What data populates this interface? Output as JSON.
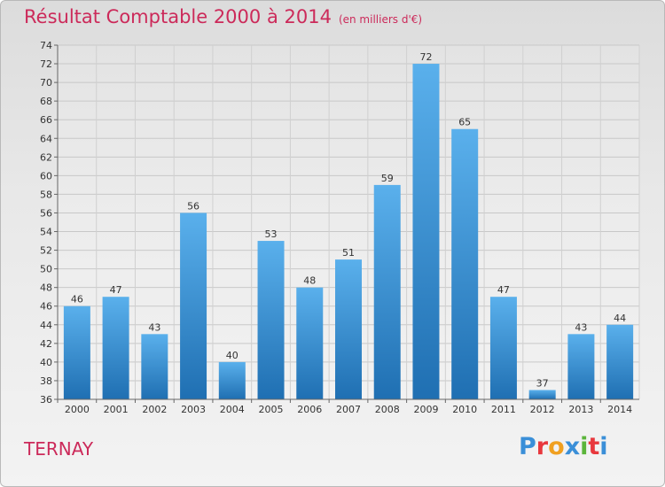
{
  "header": {
    "title": "Résultat Comptable 2000 à 2014",
    "subtitle": "(en milliers d'€)"
  },
  "commune": "TERNAY",
  "logo": {
    "letters": [
      "P",
      "r",
      "o",
      "x",
      "i",
      "t",
      "i"
    ],
    "colors": [
      "#3a8fd8",
      "#e8383d",
      "#f0a020",
      "#3a8fd8",
      "#5bb53b",
      "#e8383d",
      "#3a8fd8"
    ]
  },
  "chart_data": {
    "type": "bar",
    "categories": [
      "2000",
      "2001",
      "2002",
      "2003",
      "2004",
      "2005",
      "2006",
      "2007",
      "2008",
      "2009",
      "2010",
      "2011",
      "2012",
      "2013",
      "2014"
    ],
    "values": [
      46,
      47,
      43,
      56,
      40,
      53,
      48,
      51,
      59,
      72,
      65,
      47,
      37,
      43,
      44
    ],
    "ylim": [
      36,
      74
    ],
    "yticks": [
      "36",
      "38",
      "40",
      "42",
      "44",
      "46",
      "48",
      "50",
      "52",
      "54",
      "56",
      "58",
      "60",
      "62",
      "64",
      "66",
      "68",
      "70",
      "72",
      "74"
    ],
    "grid": true,
    "bar_color_light": "#5ab0ec",
    "bar_color_dark": "#1f6fb2"
  }
}
